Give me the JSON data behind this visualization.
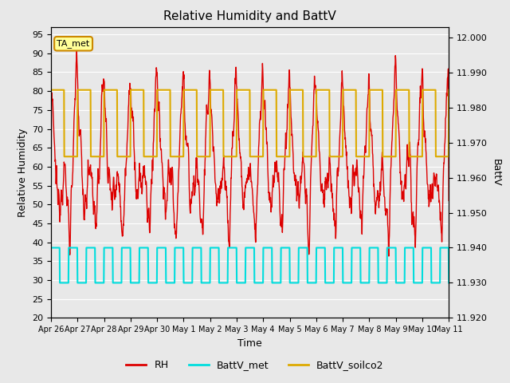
{
  "title": "Relative Humidity and BattV",
  "xlabel": "Time",
  "ylabel_left": "Relative Humidity",
  "ylabel_right": "BattV",
  "ylim_left": [
    20,
    97
  ],
  "ylim_right": [
    11.92,
    12.003
  ],
  "yticks_left": [
    20,
    25,
    30,
    35,
    40,
    45,
    50,
    55,
    60,
    65,
    70,
    75,
    80,
    85,
    90,
    95
  ],
  "yticks_right": [
    11.92,
    11.93,
    11.94,
    11.95,
    11.96,
    11.97,
    11.98,
    11.99,
    12.0
  ],
  "color_RH": "#dd0000",
  "color_BattV_met": "#00dddd",
  "color_BattV_soilco2": "#ddaa00",
  "color_annotation_bg": "#ffff99",
  "color_annotation_border": "#cc8800",
  "annotation_text": "TA_met",
  "bg_color": "#e8e8e8",
  "grid_color": "#ffffff",
  "x_tick_labels": [
    "Apr 26",
    "Apr 27",
    "Apr 28",
    "Apr 29",
    "Apr 30",
    "May 1",
    "May 2",
    "May 3",
    "May 4",
    "May 5",
    "May 6",
    "May 7",
    "May 8",
    "May 9",
    "May 10",
    "May 11"
  ],
  "legend_RH": "RH",
  "legend_BattV_met": "BattV_met",
  "legend_BattV_soilco2": "BattV_soilco2"
}
